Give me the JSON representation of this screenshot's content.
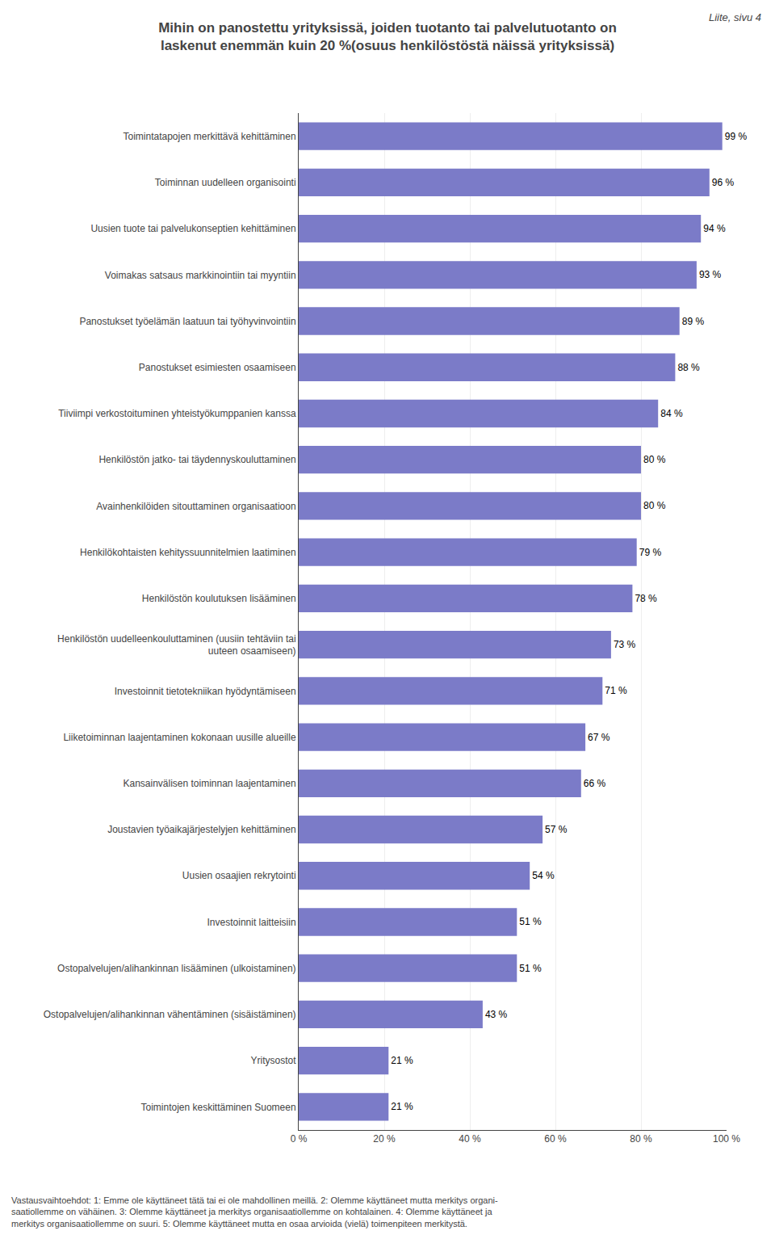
{
  "chart_data": {
    "type": "bar",
    "orientation": "horizontal",
    "title": "Mihin on panostettu yrityksissä, joiden tuotanto tai palvelutuotanto on\nlaskenut enemmän kuin 20 %(osuus henkilöstöstä näissä yrityksissä)",
    "annotations": [
      "Liite, sivu 4",
      "Vastausvaihtoehdot: 1: Emme ole käyttäneet tätä tai ei ole mahdollinen meillä. 2: Olemme käyttäneet mutta merkitys organi-\nsaatiollemme on vähäinen. 3: Olemme käyttäneet ja merkitys organisaatiollemme on kohtalainen. 4: Olemme käyttäneet ja\nmerkitys organisaatiollemme on suuri. 5: Olemme käyttäneet mutta en osaa arvioida (vielä) toimenpiteen merkitystä."
    ],
    "categories": [
      "Toimintatapojen merkittävä kehittäminen",
      "Toiminnan uudelleen organisointi",
      "Uusien tuote tai palvelukonseptien kehittäminen",
      "Voimakas satsaus markkinointiin tai myyntiin",
      "Panostukset työelämän laatuun tai työhyvinvointiin",
      "Panostukset esimiesten osaamiseen",
      "Tiiviimpi verkostoituminen yhteistyökumppanien kanssa",
      "Henkilöstön jatko- tai täydennyskouluttaminen",
      "Avainhenkilöiden sitouttaminen organisaatioon",
      "Henkilökohtaisten kehityssuunnitelmien laatiminen",
      "Henkilöstön koulutuksen lisääminen",
      "Henkilöstön uudelleenkouluttaminen (uusiin tehtäviin tai\nuuteen osaamiseen)",
      "Investoinnit tietotekniikan hyödyntämiseen",
      "Liiketoiminnan laajentaminen kokonaan uusille alueille",
      "Kansainvälisen toiminnan laajentaminen",
      "Joustavien työaikajärjestelyjen kehittäminen",
      "Uusien osaajien rekrytointi",
      "Investoinnit laitteisiin",
      "Ostopalvelujen/alihankinnan lisääminen (ulkoistaminen)",
      "Ostopalvelujen/alihankinnan vähentäminen (sisäistäminen)",
      "Yritysostot",
      "Toimintojen keskittäminen Suomeen"
    ],
    "values": [
      99,
      96,
      94,
      93,
      89,
      88,
      84,
      80,
      80,
      79,
      78,
      73,
      71,
      67,
      66,
      57,
      54,
      51,
      51,
      43,
      21,
      21
    ],
    "value_labels": [
      "99 %",
      "96 %",
      "94 %",
      "93 %",
      "89 %",
      "88 %",
      "84 %",
      "80 %",
      "80 %",
      "79 %",
      "78 %",
      "73 %",
      "71 %",
      "67 %",
      "66 %",
      "57 %",
      "54 %",
      "51 %",
      "51 %",
      "43 %",
      "21 %",
      "21 %"
    ],
    "data_labels": true,
    "color": "#7b7bc8",
    "xlim": [
      0,
      100
    ],
    "xticks": [
      {
        "value": 0,
        "label": "0 %"
      },
      {
        "value": 20,
        "label": "20 %"
      },
      {
        "value": 40,
        "label": "40 %"
      },
      {
        "value": 60,
        "label": "60 %"
      },
      {
        "value": 80,
        "label": "80 %"
      },
      {
        "value": 100,
        "label": "100 %"
      }
    ],
    "grid": true
  }
}
